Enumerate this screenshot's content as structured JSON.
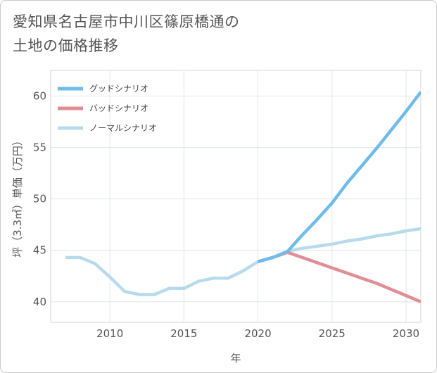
{
  "title_line1": "愛知県名古屋市中川区篠原橋通の",
  "title_line2": "土地の価格推移",
  "chart_data": {
    "type": "line",
    "xlabel": "年",
    "ylabel": "坪（3.3㎡）単価（万円）",
    "xlim": [
      2006,
      2031
    ],
    "ylim": [
      38,
      62.5
    ],
    "xticks": [
      2010,
      2015,
      2020,
      2025,
      2030
    ],
    "yticks": [
      40,
      45,
      50,
      55,
      60
    ],
    "grid": true,
    "legend_position": "top-left",
    "series": [
      {
        "name": "グッドシナリオ",
        "color": "#6fbbea",
        "x": [
          2020,
          2021,
          2022,
          2023,
          2024,
          2025,
          2026,
          2027,
          2028,
          2029,
          2030,
          2031
        ],
        "y": [
          43.9,
          44.3,
          44.9,
          46.5,
          48.0,
          49.6,
          51.5,
          53.2,
          54.9,
          56.7,
          58.5,
          60.4
        ]
      },
      {
        "name": "バッドシナリオ",
        "color": "#e08e95",
        "x": [
          2020,
          2021,
          2022,
          2023,
          2024,
          2025,
          2026,
          2027,
          2028,
          2029,
          2030,
          2031
        ],
        "y": [
          43.9,
          44.3,
          44.8,
          44.3,
          43.8,
          43.3,
          42.8,
          42.3,
          41.8,
          41.2,
          40.6,
          40.0
        ]
      },
      {
        "name": "ノーマルシナリオ",
        "color": "#b7dbec",
        "x": [
          2007,
          2008,
          2009,
          2010,
          2011,
          2012,
          2013,
          2014,
          2015,
          2016,
          2017,
          2018,
          2019,
          2020,
          2021,
          2022,
          2023,
          2024,
          2025,
          2026,
          2027,
          2028,
          2029,
          2030,
          2031
        ],
        "y": [
          44.3,
          44.3,
          43.7,
          42.4,
          41.0,
          40.7,
          40.7,
          41.3,
          41.3,
          42.0,
          42.3,
          42.3,
          43.0,
          43.9,
          44.3,
          44.9,
          45.2,
          45.4,
          45.6,
          45.9,
          46.1,
          46.4,
          46.6,
          46.9,
          47.1
        ]
      }
    ]
  }
}
